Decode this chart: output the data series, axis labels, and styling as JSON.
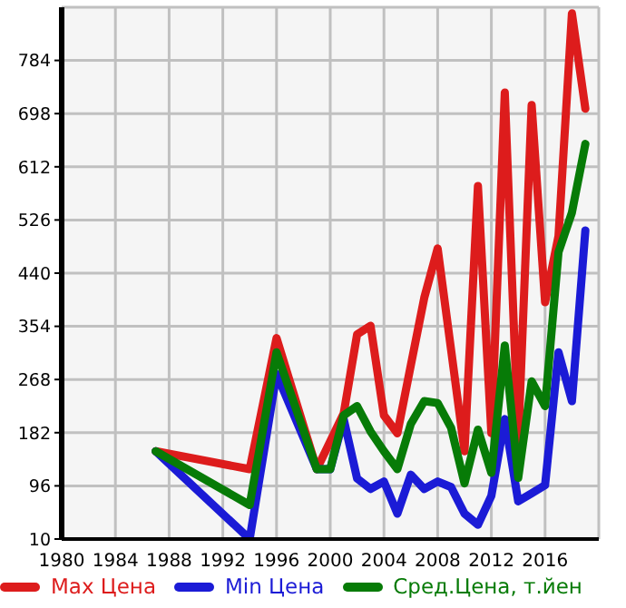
{
  "chart_data": {
    "type": "line",
    "x": [
      1987,
      1994,
      1996,
      1999,
      2000,
      2001,
      2002,
      2003,
      2004,
      2005,
      2006,
      2007,
      2008,
      2009,
      2010,
      2011,
      2012,
      2013,
      2014,
      2015,
      2016,
      2017,
      2018,
      2019
    ],
    "series": [
      {
        "name": "Max Цена",
        "color": "#dd1c1c",
        "values": [
          152,
          123,
          335,
          123,
          null,
          213,
          341,
          355,
          210,
          181,
          291,
          400,
          480,
          316,
          152,
          581,
          181,
          732,
          170,
          712,
          393,
          500,
          860,
          706
        ]
      },
      {
        "name": "Min Цена",
        "color": "#1b1bd6",
        "values": [
          152,
          10,
          277,
          123,
          123,
          204,
          108,
          91,
          103,
          51,
          114,
          91,
          103,
          94,
          51,
          33,
          80,
          204,
          71,
          84,
          97,
          312,
          233,
          509
        ]
      },
      {
        "name": "Сред.Цена, т.йен",
        "color": "#077b07",
        "values": [
          152,
          65,
          312,
          123,
          123,
          210,
          225,
          184,
          152,
          123,
          196,
          233,
          230,
          190,
          100,
          187,
          117,
          323,
          109,
          265,
          225,
          474,
          538,
          649
        ]
      }
    ],
    "xlim": [
      1980,
      2020
    ],
    "xticks": [
      1980,
      1984,
      1988,
      1992,
      1996,
      2000,
      2004,
      2008,
      2012,
      2016
    ],
    "ylim": [
      10,
      870
    ],
    "yticks": [
      10,
      96,
      182,
      268,
      354,
      440,
      526,
      612,
      698,
      784
    ],
    "grid": true,
    "legend": "bottom",
    "marker": "none",
    "line_style": "solid"
  }
}
